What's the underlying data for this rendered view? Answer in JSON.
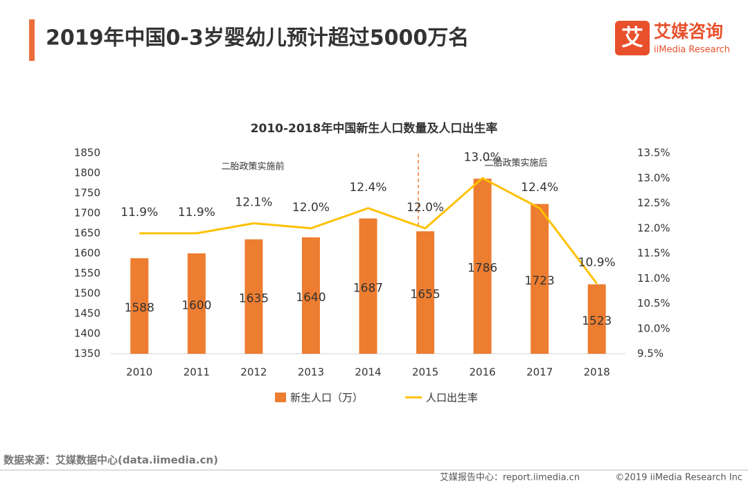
{
  "header": {
    "title": "2019年中国0-3岁婴幼儿预计超过5000万名",
    "logo_icon": "艾",
    "logo_name": "艾媒咨询",
    "logo_sub": "iiMedia Research"
  },
  "chart_data": {
    "type": "bar-line",
    "title": "2010-2018年中国新生人口数量及人口出生率",
    "categories": [
      "2010",
      "2011",
      "2012",
      "2013",
      "2014",
      "2015",
      "2016",
      "2017",
      "2018"
    ],
    "series": [
      {
        "name": "新生人口（万）",
        "type": "bar",
        "color": "#ed7d31",
        "values": [
          1588,
          1600,
          1635,
          1640,
          1687,
          1655,
          1786,
          1723,
          1523
        ]
      },
      {
        "name": "人口出生率",
        "type": "line",
        "axis": "y2",
        "color": "#ffc000",
        "values": [
          11.9,
          11.9,
          12.1,
          12.0,
          12.4,
          12.0,
          13.0,
          12.4,
          10.9
        ],
        "value_labels": [
          "11.9%",
          "11.9%",
          "12.1%",
          "12.0%",
          "12.4%",
          "12.0%",
          "13.0%",
          "12.4%",
          "10.9%"
        ]
      }
    ],
    "ylim": [
      1350,
      1850
    ],
    "yticks": [
      1350,
      1400,
      1450,
      1500,
      1550,
      1600,
      1650,
      1700,
      1750,
      1800,
      1850
    ],
    "y2lim": [
      9.5,
      13.5
    ],
    "y2ticks": [
      {
        "value": 9.5,
        "label": "9.5%"
      },
      {
        "value": 10.0,
        "label": "10.0%"
      },
      {
        "value": 10.5,
        "label": "10.5%"
      },
      {
        "value": 11.0,
        "label": "11.0%"
      },
      {
        "value": 11.5,
        "label": "11.5%"
      },
      {
        "value": 12.0,
        "label": "12.0%"
      },
      {
        "value": 12.5,
        "label": "12.5%"
      },
      {
        "value": 13.0,
        "label": "13.0%"
      },
      {
        "value": 13.5,
        "label": "13.5%"
      }
    ],
    "annotations": [
      "二胎政策实施前",
      "二胎政策实施后"
    ],
    "legend": "bottom"
  },
  "footer": {
    "source": "数据来源：艾媒数据中心(data.iimedia.cn)",
    "report": "艾媒报告中心：report.iimedia.cn",
    "copyright": "©2019  iiMedia Research  Inc"
  }
}
